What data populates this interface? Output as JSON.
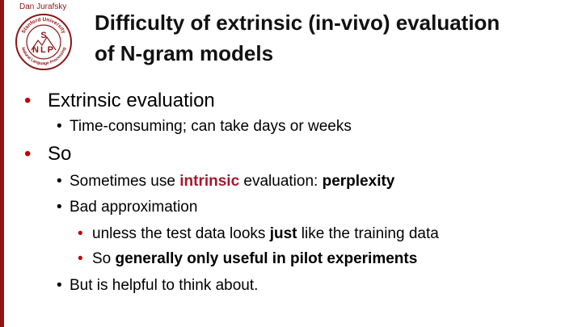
{
  "slide": {
    "author": "Dan Jurafsky",
    "title_line1": "Difficulty of extrinsic (in-vivo) evaluation",
    "title_line2": "of  N-gram models",
    "logo": {
      "top_text": "Stanford University",
      "bottom_text": "Natural Language Processing",
      "letters": [
        "S",
        "N",
        "L",
        "P"
      ]
    },
    "bullet1": "Extrinsic evaluation",
    "bullet1_sub1": "Time-consuming; can take days or weeks",
    "bullet2": "So",
    "bullet2_sub1_pre": "Sometimes use ",
    "bullet2_sub1_accent": "intrinsic",
    "bullet2_sub1_mid": " evaluation: ",
    "bullet2_sub1_bold": "perplexity",
    "bullet2_sub2": "Bad approximation",
    "bullet2_sub2_sub1_pre": "unless the test data looks ",
    "bullet2_sub2_sub1_bold": "just",
    "bullet2_sub2_sub1_post": " like the training data",
    "bullet2_sub2_sub2_pre": "So ",
    "bullet2_sub2_sub2_bold": "generally only useful in pilot experiments",
    "bullet2_sub3": "But is helpful to think about.",
    "bullet_glyph": "•"
  },
  "colors": {
    "accent": "#a6192e",
    "bullet_red": "#c00000",
    "stanford_red": "#8c1515"
  }
}
